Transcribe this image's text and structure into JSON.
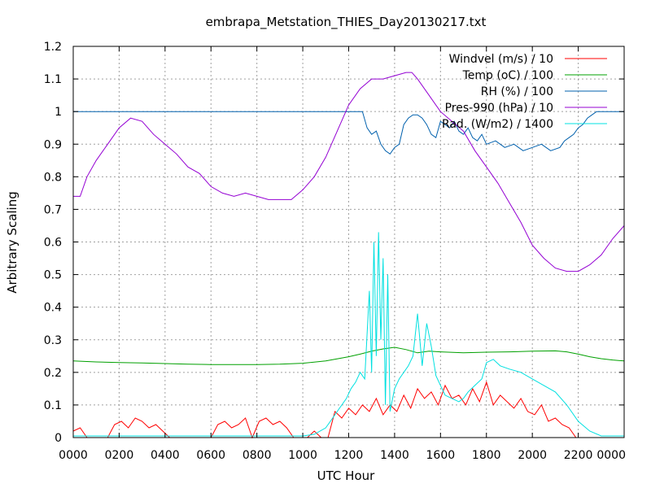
{
  "chart_data": {
    "type": "line",
    "title": "embrapa_Metstation_THIES_Day20130217.txt",
    "xlabel": "UTC Hour",
    "ylabel": "Arbitrary Scaling",
    "xlim": [
      0,
      2400
    ],
    "ylim": [
      0,
      1.2
    ],
    "grid": true,
    "legend_position": "top-right",
    "x_tick_labels": [
      "0000",
      "0200",
      "0400",
      "0600",
      "0800",
      "1000",
      "1200",
      "1400",
      "1600",
      "1800",
      "2000",
      "2200",
      "0000"
    ],
    "y_tick_labels": [
      "0",
      "0.1",
      "0.2",
      "0.3",
      "0.4",
      "0.5",
      "0.6",
      "0.7",
      "0.8",
      "0.9",
      "1",
      "1.1",
      "1.2"
    ],
    "series": [
      {
        "name": "Windvel (m/s) / 10",
        "color": "#ff0000",
        "x": [
          0,
          30,
          60,
          90,
          120,
          150,
          180,
          210,
          240,
          270,
          300,
          330,
          360,
          390,
          420,
          450,
          480,
          510,
          540,
          570,
          600,
          630,
          660,
          690,
          720,
          750,
          780,
          810,
          840,
          870,
          900,
          930,
          960,
          990,
          1020,
          1050,
          1080,
          1110,
          1140,
          1170,
          1200,
          1230,
          1260,
          1290,
          1320,
          1350,
          1380,
          1410,
          1440,
          1470,
          1500,
          1530,
          1560,
          1590,
          1620,
          1650,
          1680,
          1710,
          1740,
          1770,
          1800,
          1830,
          1860,
          1890,
          1920,
          1950,
          1980,
          2010,
          2040,
          2070,
          2100,
          2130,
          2160,
          2190,
          2220,
          2250,
          2280,
          2310,
          2340,
          2370,
          2400
        ],
        "values": [
          0.02,
          0.03,
          0.0,
          0.0,
          0.0,
          0.0,
          0.04,
          0.05,
          0.03,
          0.06,
          0.05,
          0.03,
          0.04,
          0.02,
          0.0,
          0.0,
          0.0,
          0.0,
          0.0,
          0.0,
          0.0,
          0.04,
          0.05,
          0.03,
          0.04,
          0.06,
          0.0,
          0.05,
          0.06,
          0.04,
          0.05,
          0.03,
          0.0,
          0.0,
          0.0,
          0.02,
          0.0,
          0.0,
          0.08,
          0.06,
          0.09,
          0.07,
          0.1,
          0.08,
          0.12,
          0.07,
          0.1,
          0.08,
          0.13,
          0.09,
          0.15,
          0.12,
          0.14,
          0.1,
          0.16,
          0.12,
          0.13,
          0.1,
          0.15,
          0.11,
          0.17,
          0.1,
          0.13,
          0.11,
          0.09,
          0.12,
          0.08,
          0.07,
          0.1,
          0.05,
          0.06,
          0.04,
          0.03,
          0.0,
          0.0,
          0.0,
          0.0,
          0.0,
          0.0,
          0.0,
          0.0
        ]
      },
      {
        "name": "Temp (oC) / 100",
        "color": "#00a000",
        "x": [
          0,
          100,
          200,
          300,
          400,
          500,
          600,
          700,
          800,
          900,
          1000,
          1100,
          1200,
          1250,
          1300,
          1350,
          1400,
          1450,
          1500,
          1550,
          1600,
          1700,
          1800,
          1900,
          2000,
          2100,
          2150,
          2200,
          2250,
          2300,
          2350,
          2400
        ],
        "values": [
          0.235,
          0.232,
          0.23,
          0.229,
          0.227,
          0.225,
          0.224,
          0.224,
          0.224,
          0.225,
          0.228,
          0.235,
          0.248,
          0.256,
          0.265,
          0.272,
          0.277,
          0.27,
          0.26,
          0.265,
          0.263,
          0.26,
          0.262,
          0.263,
          0.265,
          0.266,
          0.263,
          0.256,
          0.248,
          0.242,
          0.238,
          0.235
        ]
      },
      {
        "name": "RH (%) / 100",
        "color": "#0060ad",
        "x": [
          0,
          1200,
          1260,
          1280,
          1300,
          1320,
          1340,
          1360,
          1380,
          1400,
          1420,
          1440,
          1460,
          1480,
          1500,
          1520,
          1540,
          1560,
          1580,
          1600,
          1620,
          1640,
          1660,
          1680,
          1700,
          1720,
          1740,
          1760,
          1780,
          1800,
          1840,
          1880,
          1920,
          1960,
          2000,
          2040,
          2080,
          2120,
          2140,
          2160,
          2180,
          2200,
          2220,
          2240,
          2260,
          2280,
          2300,
          2400
        ],
        "values": [
          1.0,
          1.0,
          1.0,
          0.95,
          0.93,
          0.94,
          0.9,
          0.88,
          0.87,
          0.89,
          0.9,
          0.96,
          0.98,
          0.99,
          0.99,
          0.98,
          0.96,
          0.93,
          0.92,
          0.97,
          0.96,
          0.95,
          0.97,
          0.94,
          0.93,
          0.95,
          0.92,
          0.91,
          0.93,
          0.9,
          0.91,
          0.89,
          0.9,
          0.88,
          0.89,
          0.9,
          0.88,
          0.89,
          0.91,
          0.92,
          0.93,
          0.95,
          0.96,
          0.98,
          0.99,
          1.0,
          1.0,
          1.0
        ]
      },
      {
        "name": "Pres-990 (hPa) / 10",
        "color": "#9400d3",
        "x": [
          0,
          30,
          60,
          100,
          150,
          200,
          250,
          300,
          350,
          400,
          450,
          500,
          550,
          600,
          650,
          700,
          750,
          800,
          850,
          900,
          950,
          1000,
          1050,
          1100,
          1150,
          1200,
          1250,
          1300,
          1350,
          1400,
          1450,
          1475,
          1500,
          1550,
          1600,
          1650,
          1700,
          1750,
          1800,
          1850,
          1900,
          1950,
          2000,
          2050,
          2100,
          2150,
          2200,
          2250,
          2300,
          2350,
          2400
        ],
        "values": [
          0.74,
          0.74,
          0.8,
          0.85,
          0.9,
          0.95,
          0.98,
          0.97,
          0.93,
          0.9,
          0.87,
          0.83,
          0.81,
          0.77,
          0.75,
          0.74,
          0.75,
          0.74,
          0.73,
          0.73,
          0.73,
          0.76,
          0.8,
          0.86,
          0.94,
          1.02,
          1.07,
          1.1,
          1.1,
          1.11,
          1.12,
          1.12,
          1.1,
          1.05,
          1.0,
          0.97,
          0.94,
          0.88,
          0.83,
          0.78,
          0.72,
          0.66,
          0.59,
          0.55,
          0.52,
          0.51,
          0.51,
          0.53,
          0.56,
          0.61,
          0.65
        ]
      },
      {
        "name": "Rad. (W/m2) / 1400",
        "color": "#00e0e0",
        "x": [
          0,
          1000,
          1050,
          1100,
          1130,
          1160,
          1190,
          1210,
          1230,
          1250,
          1270,
          1290,
          1300,
          1310,
          1320,
          1330,
          1340,
          1350,
          1360,
          1370,
          1380,
          1400,
          1420,
          1440,
          1460,
          1480,
          1500,
          1520,
          1540,
          1560,
          1580,
          1600,
          1620,
          1650,
          1680,
          1700,
          1720,
          1750,
          1780,
          1800,
          1830,
          1860,
          1900,
          1950,
          2000,
          2050,
          2100,
          2150,
          2200,
          2250,
          2300,
          2400
        ],
        "values": [
          0.005,
          0.005,
          0.01,
          0.03,
          0.06,
          0.09,
          0.12,
          0.15,
          0.17,
          0.2,
          0.18,
          0.45,
          0.2,
          0.6,
          0.25,
          0.63,
          0.3,
          0.55,
          0.1,
          0.5,
          0.08,
          0.15,
          0.18,
          0.2,
          0.22,
          0.25,
          0.38,
          0.22,
          0.35,
          0.28,
          0.19,
          0.16,
          0.13,
          0.12,
          0.11,
          0.12,
          0.14,
          0.16,
          0.18,
          0.23,
          0.24,
          0.22,
          0.21,
          0.2,
          0.18,
          0.16,
          0.14,
          0.1,
          0.05,
          0.02,
          0.005,
          0.005
        ]
      }
    ]
  }
}
